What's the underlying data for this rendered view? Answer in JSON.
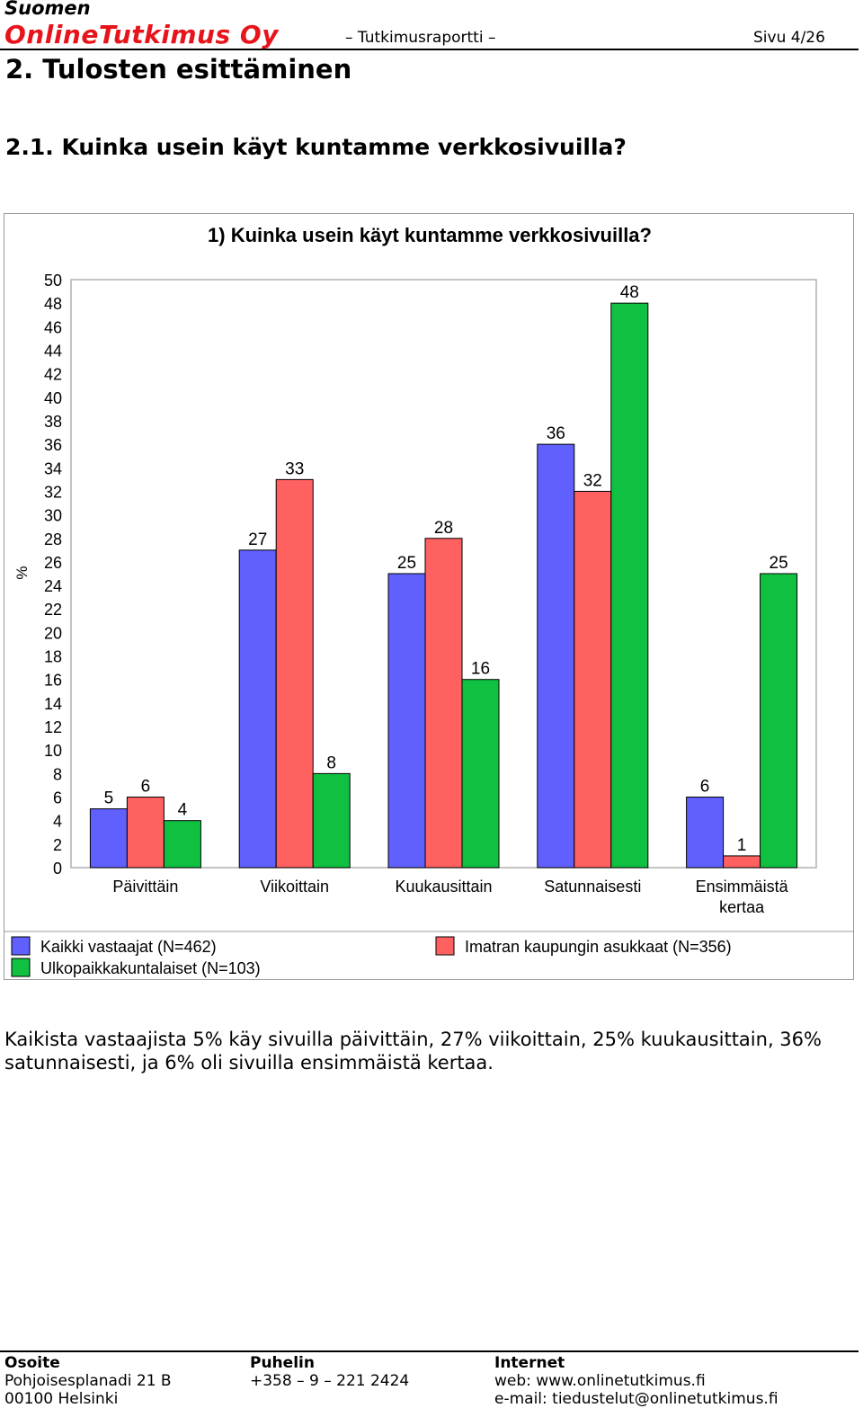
{
  "header": {
    "brand_line1": "Suomen",
    "brand_line2": "OnlineTutkimus Oy",
    "doc_type": "– Tutkimusraportti –",
    "page": "Sivu 4/26"
  },
  "section_title": "2. Tulosten esittäminen",
  "question_title": "2.1. Kuinka usein käyt kuntamme verkkosivuilla?",
  "chart_data": {
    "type": "bar",
    "title": "1) Kuinka usein käyt kuntamme verkkosivuilla?",
    "ylabel": "%",
    "ylim": [
      0,
      50
    ],
    "yticks": [
      0,
      2,
      4,
      6,
      8,
      10,
      12,
      14,
      16,
      18,
      20,
      22,
      24,
      26,
      28,
      30,
      32,
      34,
      36,
      38,
      40,
      42,
      44,
      46,
      48,
      50
    ],
    "grid": false,
    "legend_position": "bottom",
    "categories": [
      [
        "Päivittäin"
      ],
      [
        "Viikoittain"
      ],
      [
        "Kuukausittain"
      ],
      [
        "Satunnaisesti"
      ],
      [
        "Ensimmäistä",
        "kertaa"
      ]
    ],
    "series": [
      {
        "name": "Kaikki vastaajat (N=462)",
        "color": "#6060ff",
        "values": [
          5,
          27,
          25,
          36,
          6
        ]
      },
      {
        "name": "Imatran kaupungin asukkaat (N=356)",
        "color": "#ff6060",
        "values": [
          6,
          33,
          28,
          32,
          1
        ]
      },
      {
        "name": "Ulkopaikkakuntalaiset (N=103)",
        "color": "#10c040",
        "values": [
          4,
          8,
          16,
          48,
          25
        ]
      }
    ]
  },
  "summary": "Kaikista vastaajista 5% käy sivuilla päivittäin, 27% viikoittain, 25% kuukausittain, 36% satunnaisesti, ja 6% oli sivuilla ensimmäistä kertaa.",
  "footer": {
    "address_heading": "Osoite",
    "address_line1": "Pohjoisesplanadi 21 B",
    "address_line2": "00100 Helsinki",
    "phone_heading": "Puhelin",
    "phone": "+358 – 9 – 221 2424",
    "internet_heading": "Internet",
    "web": "web: www.onlinetutkimus.fi",
    "email": "e-mail: tiedustelut@onlinetutkimus.fi"
  }
}
